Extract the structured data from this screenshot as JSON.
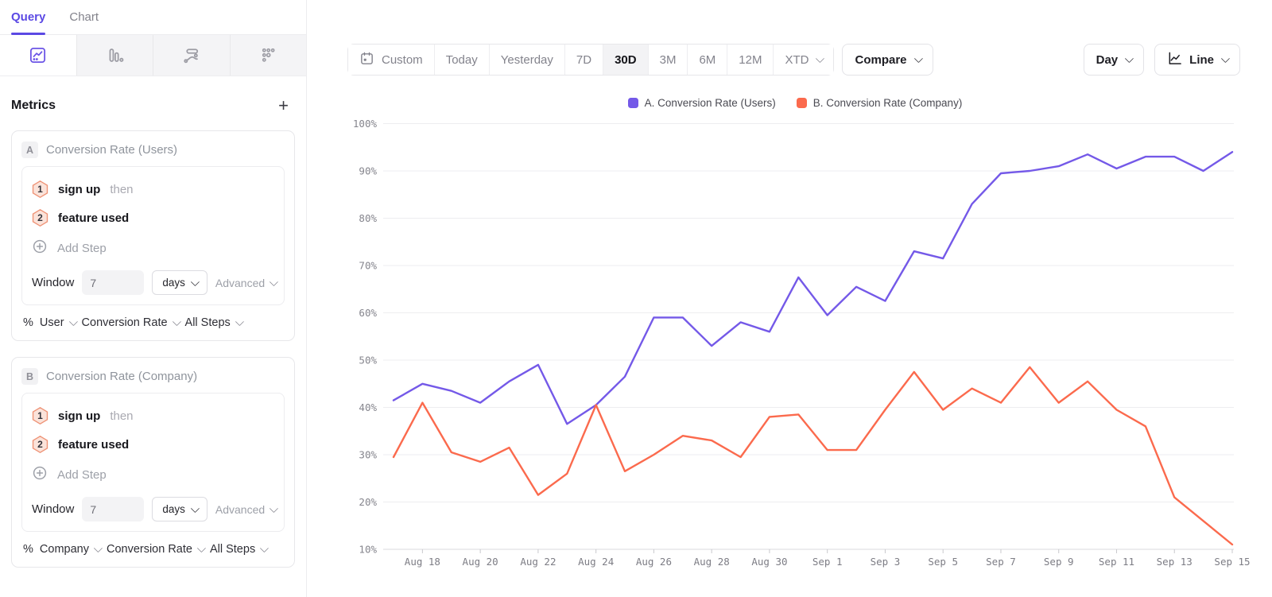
{
  "colors": {
    "accent_purple": "#7459E8",
    "series_a_purple": "#7459E8",
    "series_b_orange": "#FB6A4D",
    "step_badge_border": "#EE9275",
    "step_badge_fill": "#FBE3DA",
    "grid_line": "#EDEDF0",
    "axis_line": "#D9D9DD"
  },
  "panel": {
    "tabs": [
      {
        "label": "Query"
      },
      {
        "label": "Chart"
      }
    ],
    "view_types": [
      {
        "icon": "insights-line-icon",
        "selected": true
      },
      {
        "icon": "bar-chart-icon",
        "selected": false
      },
      {
        "icon": "flows-icon",
        "selected": false
      },
      {
        "icon": "retention-icon",
        "selected": false
      }
    ],
    "metrics_title": "Metrics",
    "add_metric_label": "+",
    "cards": [
      {
        "badge": "A",
        "title": "Conversion Rate (Users)",
        "steps": [
          {
            "num": "1",
            "event": "sign up",
            "connector": "then"
          },
          {
            "num": "2",
            "event": "feature used",
            "connector": ""
          }
        ],
        "add_step_label": "Add Step",
        "window_label": "Window",
        "window_value": "7",
        "window_unit": "days",
        "advanced_label": "Advanced",
        "measure": {
          "symbol": "%",
          "entity": "User",
          "metric": "Conversion Rate",
          "scope": "All Steps"
        }
      },
      {
        "badge": "B",
        "title": "Conversion Rate (Company)",
        "steps": [
          {
            "num": "1",
            "event": "sign up",
            "connector": "then"
          },
          {
            "num": "2",
            "event": "feature used",
            "connector": ""
          }
        ],
        "add_step_label": "Add Step",
        "window_label": "Window",
        "window_value": "7",
        "window_unit": "days",
        "advanced_label": "Advanced",
        "measure": {
          "symbol": "%",
          "entity": "Company",
          "metric": "Conversion Rate",
          "scope": "All Steps"
        }
      }
    ]
  },
  "toolbar": {
    "ranges": [
      {
        "label": "Custom",
        "icon": "calendar-icon",
        "selected": false
      },
      {
        "label": "Today",
        "selected": false
      },
      {
        "label": "Yesterday",
        "selected": false
      },
      {
        "label": "7D",
        "selected": false
      },
      {
        "label": "30D",
        "selected": true
      },
      {
        "label": "3M",
        "selected": false
      },
      {
        "label": "6M",
        "selected": false
      },
      {
        "label": "12M",
        "selected": false
      },
      {
        "label": "XTD",
        "selected": false,
        "caret": true
      }
    ],
    "compare_label": "Compare",
    "granularity": {
      "label": "Day"
    },
    "chart_type": {
      "label": "Line",
      "icon": "line-chart-icon"
    }
  },
  "chart_data": {
    "type": "line",
    "title": "",
    "xlabel": "",
    "ylabel": "",
    "ylim": [
      10,
      100
    ],
    "y_tick_step": 10,
    "y_tick_suffix": "%",
    "grid": true,
    "legend_position": "top-center",
    "categories": [
      "Aug 17",
      "Aug 18",
      "Aug 19",
      "Aug 20",
      "Aug 21",
      "Aug 22",
      "Aug 23",
      "Aug 24",
      "Aug 25",
      "Aug 26",
      "Aug 27",
      "Aug 28",
      "Aug 29",
      "Aug 30",
      "Aug 31",
      "Sep 1",
      "Sep 2",
      "Sep 3",
      "Sep 4",
      "Sep 5",
      "Sep 6",
      "Sep 7",
      "Sep 8",
      "Sep 9",
      "Sep 10",
      "Sep 11",
      "Sep 12",
      "Sep 13",
      "Sep 14",
      "Sep 15"
    ],
    "x_tick_labels": [
      "Aug 18",
      "Aug 20",
      "Aug 22",
      "Aug 24",
      "Aug 26",
      "Aug 28",
      "Aug 30",
      "Sep 1",
      "Sep 3",
      "Sep 5",
      "Sep 7",
      "Sep 9",
      "Sep 11",
      "Sep 13",
      "Sep 15"
    ],
    "series": [
      {
        "name": "A. Conversion Rate (Users)",
        "color": "#7459E8",
        "values": [
          41.5,
          45,
          43.5,
          41,
          45.5,
          49,
          36.5,
          40.5,
          46.5,
          59,
          59,
          53,
          58,
          56,
          67.5,
          59.5,
          65.5,
          62.5,
          73,
          71.5,
          83,
          89.5,
          90,
          91,
          93.5,
          90.5,
          93,
          93,
          90,
          94
        ]
      },
      {
        "name": "B. Conversion Rate (Company)",
        "color": "#FB6A4D",
        "values": [
          29.5,
          41,
          30.5,
          28.5,
          31.5,
          21.5,
          26,
          40.5,
          26.5,
          30,
          34,
          33,
          29.5,
          38,
          38.5,
          31,
          31,
          39.5,
          47.5,
          39.5,
          44,
          41,
          48.5,
          41,
          45.5,
          39.5,
          36,
          21,
          16,
          11
        ]
      }
    ]
  }
}
